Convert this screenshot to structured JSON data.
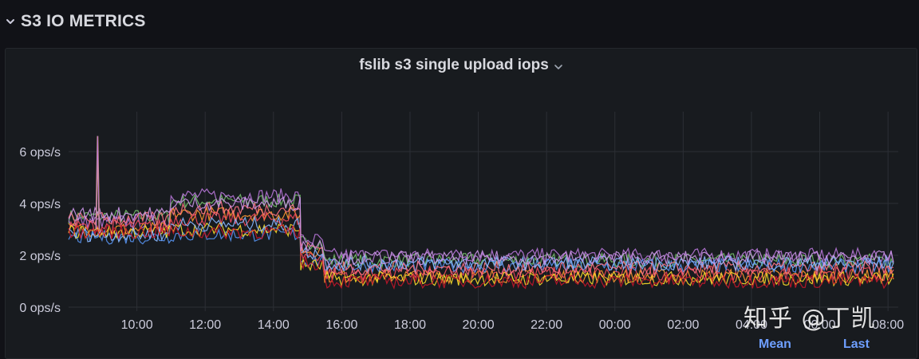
{
  "row": {
    "title": "S3 IO METRICS"
  },
  "panel": {
    "title": "fslib s3 single upload iops"
  },
  "legend": {
    "mean_label": "Mean",
    "last_label": "Last"
  },
  "watermark": "知乎 @丁凯",
  "colors": {
    "background": "#111217",
    "panel": "#181b1f",
    "grid": "#2c2f35",
    "axis_text": "#ccccdc",
    "legend_link": "#6e9fff"
  },
  "chart_data": {
    "type": "line",
    "title": "fslib s3 single upload iops",
    "ylabel": "",
    "xlabel": "",
    "y_ticks": [
      "0 ops/s",
      "2 ops/s",
      "4 ops/s",
      "6 ops/s"
    ],
    "ylim": [
      0,
      7
    ],
    "x_ticks": [
      "10:00",
      "12:00",
      "14:00",
      "16:00",
      "18:00",
      "20:00",
      "22:00",
      "00:00",
      "02:00",
      "04:00",
      "06:00",
      "08:00"
    ],
    "x_range_hours": [
      8.0,
      32.3
    ],
    "grid": true,
    "legend_placement": "bottom",
    "series_note": "many overlapping series, approximated as multiple bands",
    "series": [
      {
        "color": "#73bf69",
        "segments": [
          {
            "x": [
              8.0,
              11.0
            ],
            "y": 3.5
          },
          {
            "x": [
              11.0,
              14.8
            ],
            "y": 4.1
          },
          {
            "x": [
              14.8,
              15.5
            ],
            "y": 2.5
          },
          {
            "x": [
              15.5,
              32.2
            ],
            "y": 1.8
          }
        ]
      },
      {
        "color": "#b877d9",
        "segments": [
          {
            "x": [
              8.0,
              11.0
            ],
            "y": 3.3
          },
          {
            "x": [
              11.0,
              14.8
            ],
            "y": 4.3
          },
          {
            "x": [
              14.8,
              15.5
            ],
            "y": 2.6
          },
          {
            "x": [
              15.5,
              32.2
            ],
            "y": 2.0
          }
        ]
      },
      {
        "color": "#ff9830",
        "segments": [
          {
            "x": [
              8.0,
              11.0
            ],
            "y": 3.0
          },
          {
            "x": [
              11.0,
              14.8
            ],
            "y": 3.6
          },
          {
            "x": [
              14.8,
              15.5
            ],
            "y": 2.2
          },
          {
            "x": [
              15.5,
              32.2
            ],
            "y": 1.2
          }
        ]
      },
      {
        "color": "#f2495c",
        "segments": [
          {
            "x": [
              8.0,
              11.0
            ],
            "y": 3.1
          },
          {
            "x": [
              11.0,
              14.8
            ],
            "y": 3.4
          },
          {
            "x": [
              14.8,
              15.5
            ],
            "y": 2.0
          },
          {
            "x": [
              15.5,
              32.2
            ],
            "y": 1.3
          }
        ]
      },
      {
        "color": "#5794f2",
        "segments": [
          {
            "x": [
              8.0,
              11.0
            ],
            "y": 2.7
          },
          {
            "x": [
              11.0,
              14.8
            ],
            "y": 2.8
          },
          {
            "x": [
              14.8,
              15.5
            ],
            "y": 1.8
          },
          {
            "x": [
              15.5,
              32.2
            ],
            "y": 1.6
          }
        ]
      },
      {
        "color": "#fade2a",
        "segments": [
          {
            "x": [
              8.0,
              11.0
            ],
            "y": 2.9
          },
          {
            "x": [
              11.0,
              14.8
            ],
            "y": 3.0
          },
          {
            "x": [
              14.8,
              15.5
            ],
            "y": 1.6
          },
          {
            "x": [
              15.5,
              32.2
            ],
            "y": 1.1
          }
        ]
      },
      {
        "color": "#ff7383",
        "segments": [
          {
            "x": [
              8.0,
              11.0
            ],
            "y": 3.4
          },
          {
            "x": [
              11.0,
              14.8
            ],
            "y": 3.8
          },
          {
            "x": [
              14.8,
              15.5
            ],
            "y": 2.3
          },
          {
            "x": [
              15.5,
              32.2
            ],
            "y": 1.5
          }
        ]
      },
      {
        "color": "#8ab8ff",
        "segments": [
          {
            "x": [
              8.0,
              11.0
            ],
            "y": 2.8
          },
          {
            "x": [
              11.0,
              14.8
            ],
            "y": 3.2
          },
          {
            "x": [
              14.8,
              15.5
            ],
            "y": 2.1
          },
          {
            "x": [
              15.5,
              32.2
            ],
            "y": 1.7
          }
        ]
      },
      {
        "color": "#c4162a",
        "segments": [
          {
            "x": [
              8.0,
              11.0
            ],
            "y": 2.9
          },
          {
            "x": [
              11.0,
              14.8
            ],
            "y": 2.9
          },
          {
            "x": [
              14.8,
              15.5
            ],
            "y": 1.7
          },
          {
            "x": [
              15.5,
              32.2
            ],
            "y": 1.0
          }
        ]
      },
      {
        "color": "#ca95e5",
        "segments": [
          {
            "x": [
              8.0,
              11.0
            ],
            "y": 3.6
          },
          {
            "x": [
              11.0,
              14.8
            ],
            "y": 4.0
          },
          {
            "x": [
              14.8,
              15.5
            ],
            "y": 2.4
          },
          {
            "x": [
              15.5,
              32.2
            ],
            "y": 1.9
          }
        ]
      }
    ],
    "spike": {
      "x": 8.85,
      "y": 6.6,
      "color": "#e0a060"
    }
  }
}
